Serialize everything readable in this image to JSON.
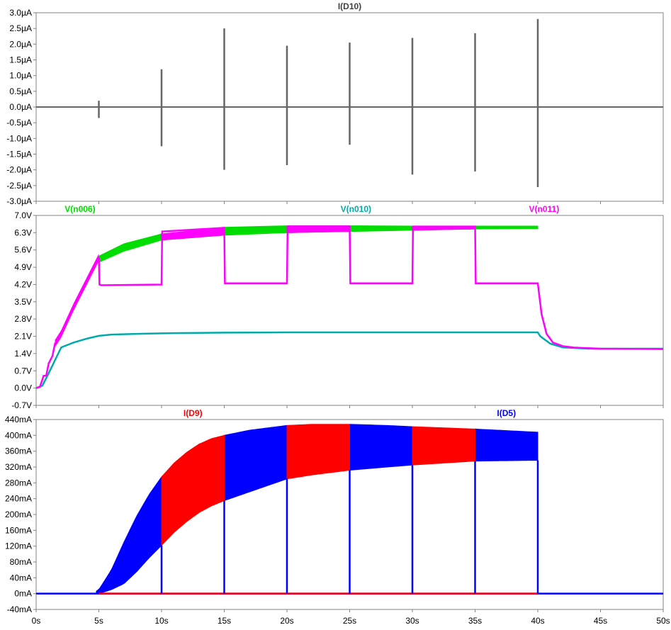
{
  "x_axis": {
    "range": [
      0,
      50
    ],
    "ticks": [
      0,
      5,
      10,
      15,
      20,
      25,
      30,
      35,
      40,
      45,
      50
    ],
    "tick_labels": [
      "0s",
      "5s",
      "10s",
      "15s",
      "20s",
      "25s",
      "30s",
      "35s",
      "40s",
      "45s",
      "50s"
    ]
  },
  "chart_data": [
    {
      "type": "line",
      "title": "I(D10)",
      "ylim": [
        -3.0,
        3.0
      ],
      "y_tick_labels": [
        "3.0µA",
        "2.5µA",
        "2.0µA",
        "1.5µA",
        "1.0µA",
        "0.5µA",
        "0.0µA",
        "-0.5µA",
        "-1.0µA",
        "-1.5µA",
        "-2.0µA",
        "-2.5µA",
        "-3.0µA"
      ],
      "y_ticks": [
        3.0,
        2.5,
        2.0,
        1.5,
        1.0,
        0.5,
        0.0,
        -0.5,
        -1.0,
        -1.5,
        -2.0,
        -2.5,
        -3.0
      ],
      "grid": false,
      "series": [
        {
          "name": "I(D10)",
          "color": "#666666",
          "baseline": 0,
          "spikes": [
            {
              "x": 5,
              "max": 0.2,
              "min": -0.35
            },
            {
              "x": 10,
              "max": 1.2,
              "min": -1.25
            },
            {
              "x": 15,
              "max": 2.5,
              "min": -2.0
            },
            {
              "x": 20,
              "max": 1.95,
              "min": -1.85
            },
            {
              "x": 25,
              "max": 2.05,
              "min": -1.2
            },
            {
              "x": 30,
              "max": 2.2,
              "min": -2.15
            },
            {
              "x": 35,
              "max": 2.35,
              "min": -2.05
            },
            {
              "x": 40,
              "max": 2.8,
              "min": -2.55
            }
          ]
        }
      ]
    },
    {
      "type": "line",
      "ylim": [
        -0.7,
        7.0
      ],
      "y_tick_labels": [
        "7.0V",
        "6.3V",
        "5.6V",
        "4.9V",
        "4.2V",
        "3.5V",
        "2.8V",
        "2.1V",
        "1.4V",
        "0.7V",
        "0.0V",
        "-0.7V"
      ],
      "y_ticks": [
        7.0,
        6.3,
        5.6,
        4.9,
        4.2,
        3.5,
        2.8,
        2.1,
        1.4,
        0.7,
        0.0,
        -0.7
      ],
      "grid": false,
      "legend": "top",
      "series": [
        {
          "name": "V(n006)",
          "color": "#00dd00",
          "upper": {
            "x": [
              5,
              7,
              10,
              15,
              20,
              25,
              30,
              35,
              40
            ],
            "y": [
              5.35,
              5.85,
              6.25,
              6.52,
              6.58,
              6.58,
              6.57,
              6.57,
              6.57
            ]
          },
          "lower": {
            "x": [
              5,
              7,
              10,
              15,
              20,
              25,
              30,
              35,
              40
            ],
            "y": [
              5.1,
              5.55,
              6.0,
              6.2,
              6.3,
              6.35,
              6.4,
              6.45,
              6.47
            ]
          }
        },
        {
          "name": "V(n010)",
          "color": "#00aaaa",
          "x": [
            0,
            0.5,
            1,
            2,
            3,
            4,
            5,
            6,
            8,
            10,
            15,
            20,
            30,
            40,
            40.2,
            41,
            42,
            44,
            50
          ],
          "y": [
            0.0,
            0.1,
            0.6,
            1.65,
            1.85,
            2.0,
            2.12,
            2.17,
            2.2,
            2.22,
            2.25,
            2.26,
            2.26,
            2.26,
            2.1,
            1.8,
            1.65,
            1.6,
            1.6
          ]
        },
        {
          "name": "V(n011)",
          "color": "#ff00ff",
          "x": [
            0,
            0.3,
            0.6,
            0.8,
            1,
            1.3,
            1.5,
            2,
            3,
            4,
            5,
            5.05,
            5.2,
            10,
            10.05,
            15,
            15.05,
            20,
            20.05,
            25,
            25.05,
            30,
            30.05,
            35,
            35.05,
            40,
            40.3,
            40.7,
            41.2,
            42,
            43,
            45,
            50
          ],
          "y": [
            0.0,
            0.05,
            0.5,
            0.5,
            1.0,
            1.3,
            1.8,
            2.2,
            3.3,
            4.3,
            5.3,
            4.2,
            4.17,
            4.2,
            6.35,
            6.5,
            4.25,
            4.25,
            6.55,
            6.55,
            4.25,
            4.25,
            6.55,
            6.55,
            4.25,
            4.25,
            3.0,
            2.2,
            1.85,
            1.7,
            1.64,
            1.6,
            1.58
          ],
          "band": {
            "segments": [
              [
                10,
                15
              ],
              [
                20,
                25
              ],
              [
                30,
                35
              ]
            ],
            "upper": [
              6.35,
              6.52,
              6.58,
              6.58,
              6.57,
              6.57
            ],
            "lower": [
              6.0,
              6.2,
              6.3,
              6.35,
              6.4,
              6.45
            ]
          }
        }
      ]
    },
    {
      "type": "area",
      "ylim": [
        -40,
        440
      ],
      "y_tick_labels": [
        "440mA",
        "400mA",
        "360mA",
        "320mA",
        "280mA",
        "240mA",
        "200mA",
        "160mA",
        "120mA",
        "80mA",
        "40mA",
        "0mA",
        "-40mA"
      ],
      "y_ticks": [
        440,
        400,
        360,
        320,
        280,
        240,
        200,
        160,
        120,
        80,
        40,
        0,
        -40
      ],
      "grid": false,
      "legend": "top",
      "series": [
        {
          "name": "I(D9)",
          "color": "#ff0000",
          "bands": [
            [
              10,
              15
            ],
            [
              20,
              25
            ],
            [
              30,
              35
            ]
          ],
          "baseline": 0
        },
        {
          "name": "I(D5)",
          "color": "#0000ff",
          "bands": [
            [
              4.8,
              10
            ],
            [
              15,
              20
            ],
            [
              25,
              30
            ],
            [
              35,
              40
            ]
          ],
          "baseline": 0
        }
      ],
      "envelope": {
        "x": [
          4.5,
          5,
          6,
          7,
          8,
          9,
          10,
          11,
          12,
          13,
          14,
          15,
          17,
          20,
          22,
          25,
          28,
          30,
          35,
          40
        ],
        "upper": [
          0,
          10,
          60,
          130,
          195,
          250,
          295,
          330,
          357,
          378,
          392,
          400,
          413,
          425,
          428,
          428,
          425,
          422,
          416,
          408
        ],
        "lower": [
          0,
          0,
          10,
          25,
          55,
          90,
          122,
          155,
          182,
          205,
          222,
          235,
          257,
          290,
          300,
          312,
          320,
          325,
          335,
          337
        ]
      }
    }
  ]
}
